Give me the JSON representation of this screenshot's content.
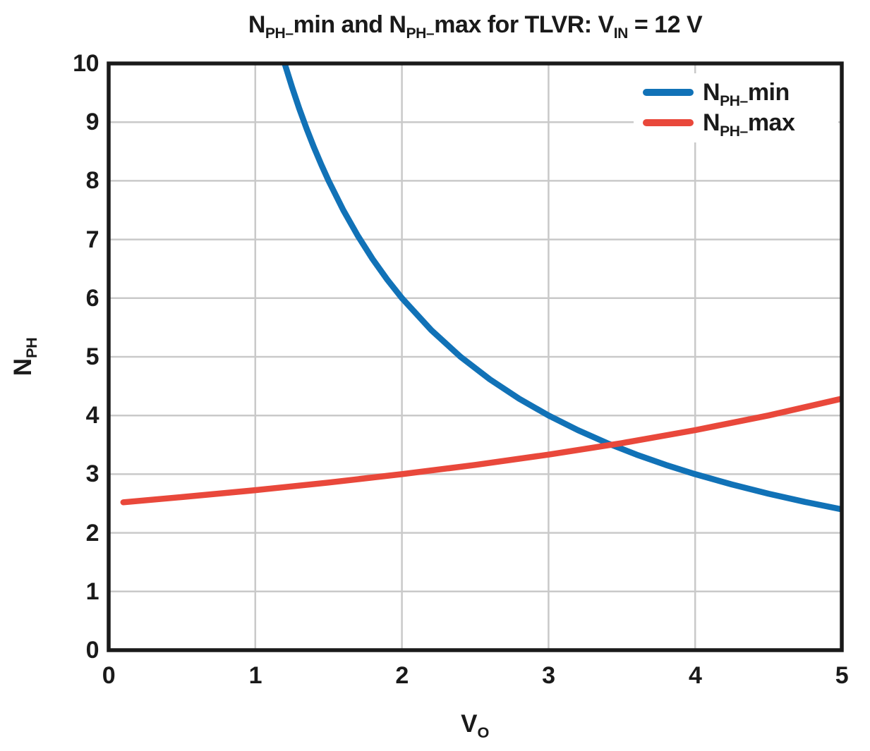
{
  "chart_data": {
    "type": "line",
    "title_segments": [
      {
        "t": "N"
      },
      {
        "t": "PH–",
        "sub": true
      },
      {
        "t": "min and N"
      },
      {
        "t": "PH–",
        "sub": true
      },
      {
        "t": "max for TLVR: V"
      },
      {
        "t": "IN",
        "sub": true
      },
      {
        "t": " = 12 V"
      }
    ],
    "colors": {
      "background": "#ffffff",
      "grid": "#c9c9c9",
      "axis": "#1a1a1a",
      "nph_min": "#1172b7",
      "nph_max": "#e9483b"
    },
    "grid": true,
    "x_axis": {
      "label_segments": [
        {
          "t": "V"
        },
        {
          "t": "O",
          "sub": true
        }
      ],
      "range": [
        0,
        5
      ],
      "ticks": [
        0,
        1,
        2,
        3,
        4,
        5
      ],
      "tick_labels": [
        "0",
        "1",
        "2",
        "3",
        "4",
        "5"
      ]
    },
    "y_axis": {
      "label_segments": [
        {
          "t": "N"
        },
        {
          "t": "PH",
          "sub": true
        }
      ],
      "range": [
        0,
        10
      ],
      "ticks": [
        0,
        1,
        2,
        3,
        4,
        5,
        6,
        7,
        8,
        9,
        10
      ],
      "tick_labels": [
        "0",
        "1",
        "2",
        "3",
        "4",
        "5",
        "6",
        "7",
        "8",
        "9",
        "10"
      ]
    },
    "legend": {
      "position": "top-right",
      "frame": false,
      "entries": [
        {
          "id": "nph-min",
          "name_segments": [
            {
              "t": "N"
            },
            {
              "t": "PH–",
              "sub": true
            },
            {
              "t": "min"
            }
          ]
        },
        {
          "id": "nph-max",
          "name_segments": [
            {
              "t": "N"
            },
            {
              "t": "PH–",
              "sub": true
            },
            {
              "t": "max"
            }
          ]
        }
      ]
    },
    "series": [
      {
        "id": "nph-min",
        "label": "NPH_min",
        "color": "#1172b7",
        "x": [
          1.2,
          1.25,
          1.3,
          1.35,
          1.4,
          1.45,
          1.5,
          1.6,
          1.7,
          1.8,
          1.9,
          2.0,
          2.2,
          2.4,
          2.6,
          2.8,
          3.0,
          3.2,
          3.4,
          3.6,
          3.8,
          4.0,
          4.25,
          4.5,
          4.75,
          5.0
        ],
        "y": [
          10.0,
          9.6,
          9.231,
          8.889,
          8.571,
          8.276,
          8.0,
          7.5,
          7.059,
          6.667,
          6.316,
          6.0,
          5.455,
          5.0,
          4.615,
          4.286,
          4.0,
          3.75,
          3.529,
          3.333,
          3.158,
          3.0,
          2.824,
          2.667,
          2.526,
          2.4
        ]
      },
      {
        "id": "nph-max",
        "label": "NPH_max",
        "color": "#e9483b",
        "x": [
          0.1,
          0.5,
          1.0,
          1.5,
          2.0,
          2.5,
          3.0,
          3.5,
          4.0,
          4.5,
          5.0
        ],
        "y": [
          2.521,
          2.609,
          2.727,
          2.857,
          3.0,
          3.158,
          3.333,
          3.529,
          3.75,
          4.0,
          4.286
        ]
      }
    ]
  }
}
